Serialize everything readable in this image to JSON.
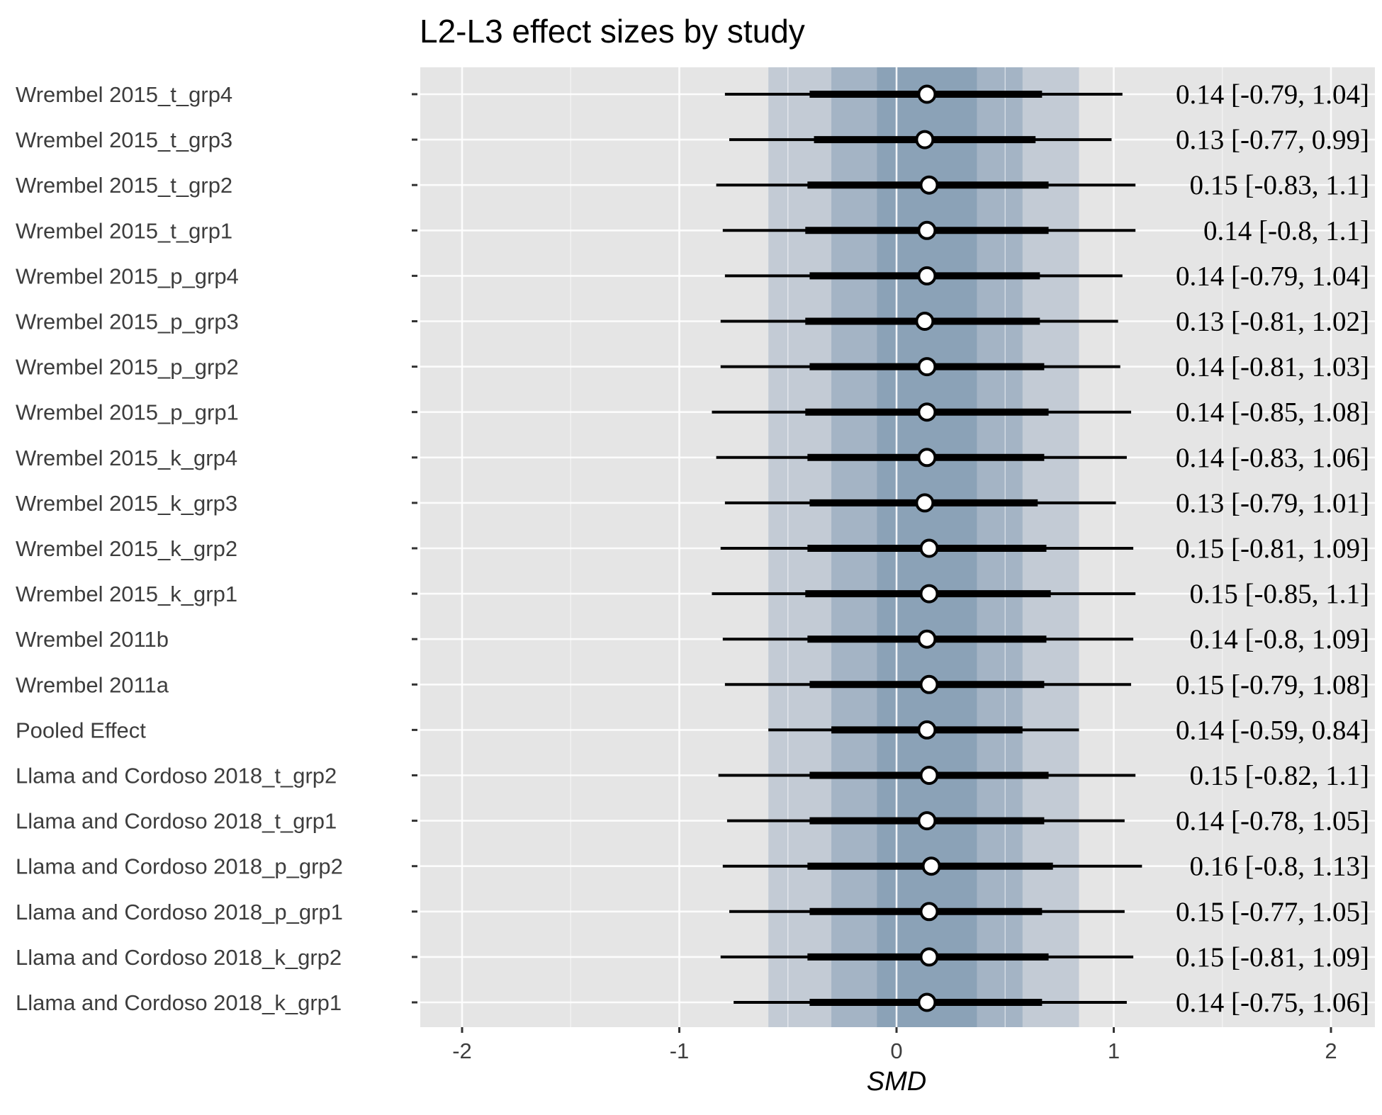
{
  "chart_data": {
    "type": "forest",
    "title": "L2-L3 effect sizes by study",
    "xlabel": "SMD",
    "xlim": [
      -2.2,
      2.2
    ],
    "x_ticks": [
      -2,
      -1,
      0,
      1,
      2
    ],
    "x_tick_labels": [
      "-2",
      "-1",
      "0",
      "1",
      "2"
    ],
    "grid": true,
    "pooled_interval_bands": [
      {
        "level": "outer",
        "lower": -0.59,
        "upper": 0.84
      },
      {
        "level": "middle",
        "lower": -0.3,
        "upper": 0.58
      },
      {
        "level": "inner",
        "lower": -0.09,
        "upper": 0.37
      }
    ],
    "rows": [
      {
        "label": "Wrembel 2015_t_grp4",
        "estimate": 0.14,
        "lower": -0.79,
        "upper": 1.04,
        "inner_lower": -0.4,
        "inner_upper": 0.67,
        "text": "0.14 [-0.79, 1.04]"
      },
      {
        "label": "Wrembel 2015_t_grp3",
        "estimate": 0.13,
        "lower": -0.77,
        "upper": 0.99,
        "inner_lower": -0.38,
        "inner_upper": 0.64,
        "text": "0.13 [-0.77, 0.99]"
      },
      {
        "label": "Wrembel 2015_t_grp2",
        "estimate": 0.15,
        "lower": -0.83,
        "upper": 1.1,
        "inner_lower": -0.41,
        "inner_upper": 0.7,
        "text": "0.15 [-0.83, 1.1]"
      },
      {
        "label": "Wrembel 2015_t_grp1",
        "estimate": 0.14,
        "lower": -0.8,
        "upper": 1.1,
        "inner_lower": -0.42,
        "inner_upper": 0.7,
        "text": "0.14 [-0.8, 1.1]"
      },
      {
        "label": "Wrembel 2015_p_grp4",
        "estimate": 0.14,
        "lower": -0.79,
        "upper": 1.04,
        "inner_lower": -0.4,
        "inner_upper": 0.66,
        "text": "0.14 [-0.79, 1.04]"
      },
      {
        "label": "Wrembel 2015_p_grp3",
        "estimate": 0.13,
        "lower": -0.81,
        "upper": 1.02,
        "inner_lower": -0.42,
        "inner_upper": 0.66,
        "text": "0.13 [-0.81, 1.02]"
      },
      {
        "label": "Wrembel 2015_p_grp2",
        "estimate": 0.14,
        "lower": -0.81,
        "upper": 1.03,
        "inner_lower": -0.4,
        "inner_upper": 0.68,
        "text": "0.14 [-0.81, 1.03]"
      },
      {
        "label": "Wrembel 2015_p_grp1",
        "estimate": 0.14,
        "lower": -0.85,
        "upper": 1.08,
        "inner_lower": -0.42,
        "inner_upper": 0.7,
        "text": "0.14 [-0.85, 1.08]"
      },
      {
        "label": "Wrembel 2015_k_grp4",
        "estimate": 0.14,
        "lower": -0.83,
        "upper": 1.06,
        "inner_lower": -0.41,
        "inner_upper": 0.68,
        "text": "0.14 [-0.83, 1.06]"
      },
      {
        "label": "Wrembel 2015_k_grp3",
        "estimate": 0.13,
        "lower": -0.79,
        "upper": 1.01,
        "inner_lower": -0.4,
        "inner_upper": 0.65,
        "text": "0.13 [-0.79, 1.01]"
      },
      {
        "label": "Wrembel 2015_k_grp2",
        "estimate": 0.15,
        "lower": -0.81,
        "upper": 1.09,
        "inner_lower": -0.41,
        "inner_upper": 0.69,
        "text": "0.15 [-0.81, 1.09]"
      },
      {
        "label": "Wrembel 2015_k_grp1",
        "estimate": 0.15,
        "lower": -0.85,
        "upper": 1.1,
        "inner_lower": -0.42,
        "inner_upper": 0.71,
        "text": "0.15 [-0.85, 1.1]"
      },
      {
        "label": "Wrembel 2011b",
        "estimate": 0.14,
        "lower": -0.8,
        "upper": 1.09,
        "inner_lower": -0.41,
        "inner_upper": 0.69,
        "text": "0.14 [-0.8, 1.09]"
      },
      {
        "label": "Wrembel 2011a",
        "estimate": 0.15,
        "lower": -0.79,
        "upper": 1.08,
        "inner_lower": -0.4,
        "inner_upper": 0.68,
        "text": "0.15 [-0.79, 1.08]"
      },
      {
        "label": "Pooled Effect",
        "estimate": 0.14,
        "lower": -0.59,
        "upper": 0.84,
        "inner_lower": -0.3,
        "inner_upper": 0.58,
        "text": "0.14 [-0.59, 0.84]"
      },
      {
        "label": "Llama and Cordoso 2018_t_grp2",
        "estimate": 0.15,
        "lower": -0.82,
        "upper": 1.1,
        "inner_lower": -0.4,
        "inner_upper": 0.7,
        "text": "0.15 [-0.82, 1.1]"
      },
      {
        "label": "Llama and Cordoso 2018_t_grp1",
        "estimate": 0.14,
        "lower": -0.78,
        "upper": 1.05,
        "inner_lower": -0.4,
        "inner_upper": 0.68,
        "text": "0.14 [-0.78, 1.05]"
      },
      {
        "label": "Llama and Cordoso 2018_p_grp2",
        "estimate": 0.16,
        "lower": -0.8,
        "upper": 1.13,
        "inner_lower": -0.41,
        "inner_upper": 0.72,
        "text": "0.16 [-0.8, 1.13]"
      },
      {
        "label": "Llama and Cordoso 2018_p_grp1",
        "estimate": 0.15,
        "lower": -0.77,
        "upper": 1.05,
        "inner_lower": -0.4,
        "inner_upper": 0.67,
        "text": "0.15 [-0.77, 1.05]"
      },
      {
        "label": "Llama and Cordoso 2018_k_grp2",
        "estimate": 0.15,
        "lower": -0.81,
        "upper": 1.09,
        "inner_lower": -0.41,
        "inner_upper": 0.7,
        "text": "0.15 [-0.81, 1.09]"
      },
      {
        "label": "Llama and Cordoso 2018_k_grp1",
        "estimate": 0.14,
        "lower": -0.75,
        "upper": 1.06,
        "inner_lower": -0.4,
        "inner_upper": 0.67,
        "text": "0.14 [-0.75, 1.06]"
      }
    ],
    "colors": {
      "panel_background": "#e5e5e5",
      "grid": "#ffffff",
      "band_outer": "#c3cbd5",
      "band_middle": "#a4b4c5",
      "band_inner": "#8ba2b7",
      "interval": "#000000",
      "point_fill": "#ffffff"
    }
  }
}
